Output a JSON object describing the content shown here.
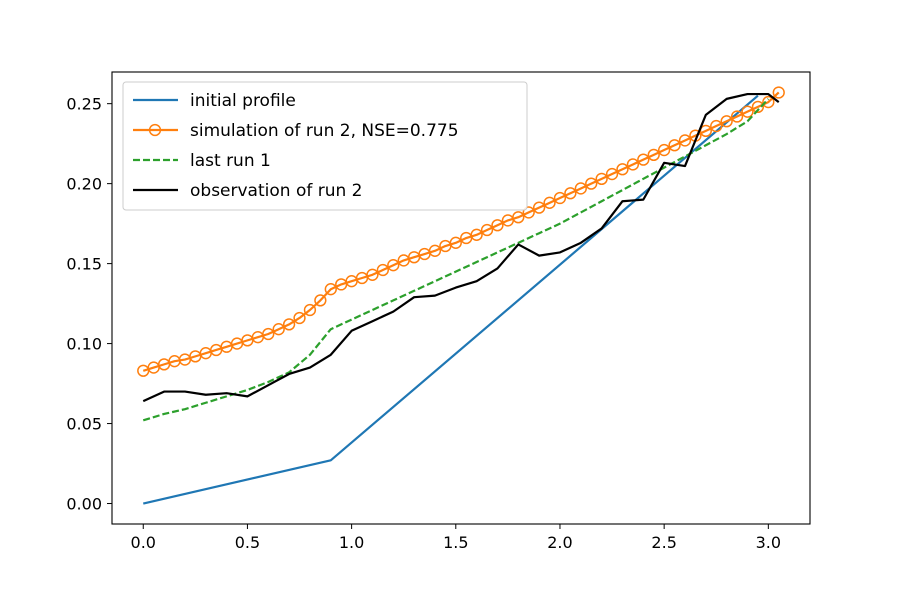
{
  "chart_data": {
    "type": "line",
    "title": "",
    "xlabel": "",
    "ylabel": "",
    "xlim": [
      -0.15,
      3.2
    ],
    "ylim": [
      -0.0128,
      0.2698
    ],
    "xticks": [
      0.0,
      0.5,
      1.0,
      1.5,
      2.0,
      2.5,
      3.0
    ],
    "xtick_labels": [
      "0.0",
      "0.5",
      "1.0",
      "1.5",
      "2.0",
      "2.5",
      "3.0"
    ],
    "yticks": [
      0.0,
      0.05,
      0.1,
      0.15,
      0.2,
      0.25
    ],
    "ytick_labels": [
      "0.00",
      "0.05",
      "0.10",
      "0.15",
      "0.20",
      "0.25"
    ],
    "legend_position": "top-left",
    "series": [
      {
        "name": "initial profile",
        "color": "#1f77b4",
        "style": "solid",
        "marker": "none",
        "x": [
          0.0,
          0.9,
          2.95
        ],
        "y": [
          0.0,
          0.027,
          0.255
        ]
      },
      {
        "name": "simulation of run 2, NSE=0.775",
        "color": "#ff7f0e",
        "style": "solid",
        "marker": "circle",
        "x": [
          0.0,
          0.05,
          0.1,
          0.15,
          0.2,
          0.25,
          0.3,
          0.35,
          0.4,
          0.45,
          0.5,
          0.55,
          0.6,
          0.65,
          0.7,
          0.75,
          0.8,
          0.85,
          0.9,
          0.95,
          1.0,
          1.05,
          1.1,
          1.15,
          1.2,
          1.25,
          1.3,
          1.35,
          1.4,
          1.45,
          1.5,
          1.55,
          1.6,
          1.65,
          1.7,
          1.75,
          1.8,
          1.85,
          1.9,
          1.95,
          2.0,
          2.05,
          2.1,
          2.15,
          2.2,
          2.25,
          2.3,
          2.35,
          2.4,
          2.45,
          2.5,
          2.55,
          2.6,
          2.65,
          2.7,
          2.75,
          2.8,
          2.85,
          2.9,
          2.95,
          3.0,
          3.05
        ],
        "y": [
          0.083,
          0.085,
          0.087,
          0.089,
          0.09,
          0.092,
          0.094,
          0.096,
          0.098,
          0.1,
          0.102,
          0.104,
          0.106,
          0.109,
          0.112,
          0.116,
          0.121,
          0.127,
          0.134,
          0.137,
          0.139,
          0.141,
          0.143,
          0.146,
          0.149,
          0.152,
          0.154,
          0.156,
          0.158,
          0.161,
          0.163,
          0.166,
          0.168,
          0.171,
          0.174,
          0.177,
          0.179,
          0.182,
          0.185,
          0.188,
          0.191,
          0.194,
          0.197,
          0.2,
          0.203,
          0.206,
          0.209,
          0.212,
          0.215,
          0.218,
          0.221,
          0.224,
          0.227,
          0.23,
          0.233,
          0.236,
          0.239,
          0.242,
          0.245,
          0.248,
          0.251,
          0.257
        ]
      },
      {
        "name": "last run 1",
        "color": "#2ca02c",
        "style": "dashed",
        "marker": "none",
        "x": [
          0.0,
          0.1,
          0.2,
          0.3,
          0.4,
          0.5,
          0.6,
          0.7,
          0.8,
          0.9,
          1.0,
          1.1,
          1.2,
          1.3,
          1.4,
          1.5,
          1.6,
          1.7,
          1.8,
          1.9,
          2.0,
          2.1,
          2.2,
          2.3,
          2.4,
          2.5,
          2.6,
          2.7,
          2.8,
          2.9,
          3.0
        ],
        "y": [
          0.052,
          0.056,
          0.059,
          0.063,
          0.067,
          0.071,
          0.076,
          0.082,
          0.093,
          0.109,
          0.115,
          0.121,
          0.127,
          0.133,
          0.139,
          0.145,
          0.151,
          0.157,
          0.163,
          0.169,
          0.175,
          0.182,
          0.189,
          0.196,
          0.203,
          0.21,
          0.217,
          0.224,
          0.231,
          0.239,
          0.253
        ]
      },
      {
        "name": "observation of run 2",
        "color": "#000000",
        "style": "solid",
        "marker": "none",
        "x": [
          0.0,
          0.1,
          0.2,
          0.3,
          0.4,
          0.5,
          0.6,
          0.7,
          0.8,
          0.9,
          1.0,
          1.1,
          1.2,
          1.3,
          1.4,
          1.5,
          1.6,
          1.7,
          1.8,
          1.9,
          2.0,
          2.1,
          2.2,
          2.3,
          2.4,
          2.5,
          2.6,
          2.7,
          2.8,
          2.9,
          3.0,
          3.05
        ],
        "y": [
          0.064,
          0.07,
          0.07,
          0.068,
          0.069,
          0.067,
          0.074,
          0.081,
          0.085,
          0.093,
          0.108,
          0.114,
          0.12,
          0.129,
          0.13,
          0.135,
          0.139,
          0.147,
          0.162,
          0.155,
          0.157,
          0.163,
          0.172,
          0.189,
          0.19,
          0.213,
          0.211,
          0.243,
          0.253,
          0.256,
          0.256,
          0.251
        ]
      }
    ]
  }
}
